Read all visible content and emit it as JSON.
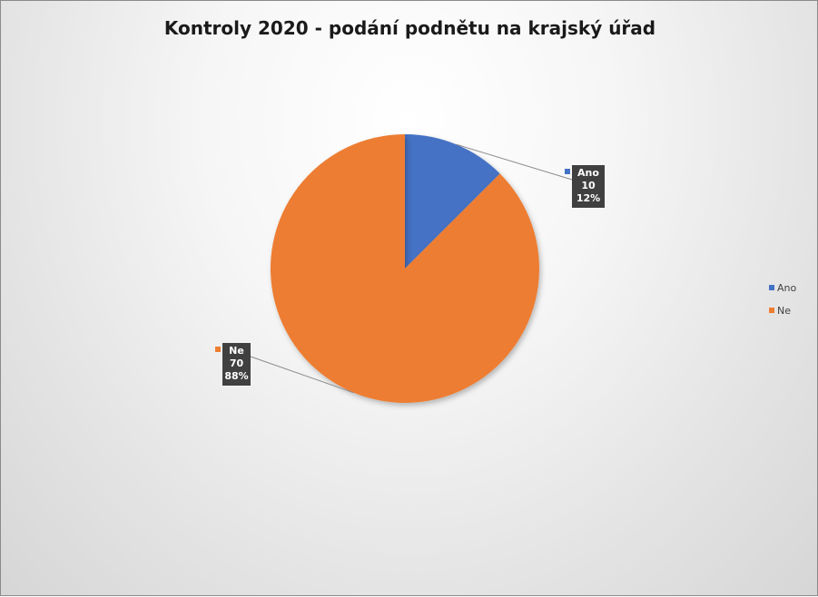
{
  "chart_data": {
    "type": "pie",
    "title": "Kontroly 2020 - podání podnětu na krajský úřad",
    "categories": [
      "Ano",
      "Ne"
    ],
    "values": [
      10,
      70
    ],
    "percent_labels": [
      "12%",
      "88%"
    ],
    "colors": [
      "#4472C4",
      "#ED7D31"
    ],
    "legend_position": "right",
    "data_labels": "category, value, percent"
  }
}
